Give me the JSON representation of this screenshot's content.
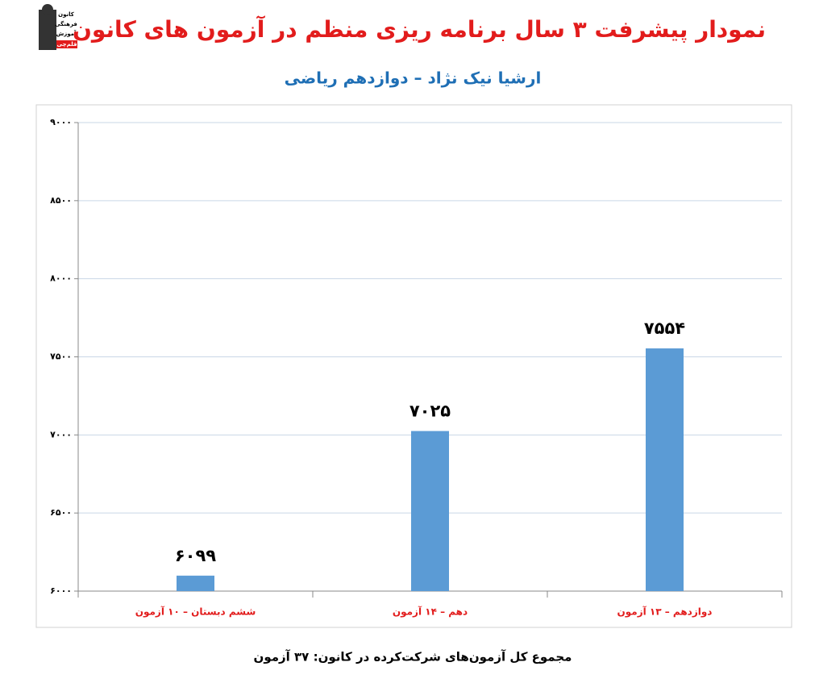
{
  "logo_text": [
    "کانون",
    "فرهنگی",
    "آموزش",
    "قلم‌چی"
  ],
  "chart_data": {
    "type": "bar",
    "title": "نمودار پیشرفت ۳ سال برنامه ریزی منظم در آزمون های کانون",
    "subtitle": "ارشیا نیک نژاد – دوازدهم ریاضی",
    "categories": [
      "ششم دبستان – ۱۰ آزمون",
      "دهم – ۱۴ آزمون",
      "دوازدهم – ۱۳ آزمون"
    ],
    "values": [
      6099,
      7025,
      7554
    ],
    "value_labels": [
      "۶۰۹۹",
      "۷۰۲۵",
      "۷۵۵۴"
    ],
    "color": "#5b9bd5",
    "ylim": [
      6000,
      9000
    ],
    "yticks": [
      {
        "value": 6000,
        "label": "۶۰۰۰"
      },
      {
        "value": 6500,
        "label": "۶۵۰۰"
      },
      {
        "value": 7000,
        "label": "۷۰۰۰"
      },
      {
        "value": 7500,
        "label": "۷۵۰۰"
      },
      {
        "value": 8000,
        "label": "۸۰۰۰"
      },
      {
        "value": 8500,
        "label": "۸۵۰۰"
      },
      {
        "value": 9000,
        "label": "۹۰۰۰"
      }
    ],
    "grid": true,
    "footnote": "مجموع کل آزمون‌های شرکت‌کرده در کانون: ۳۷ آزمون"
  }
}
